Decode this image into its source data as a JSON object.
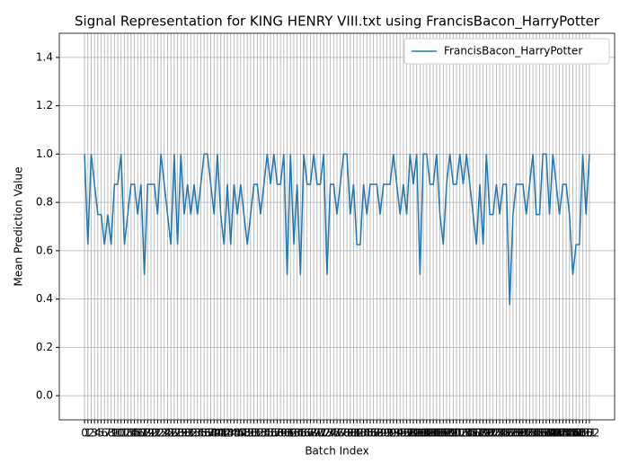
{
  "chart_data": {
    "type": "line",
    "title": "Signal Representation for KING HENRY VIII.txt using FrancisBacon_HarryPotter",
    "x_label": "Batch Index",
    "y_label": "Mean Prediction Value",
    "x": [
      0,
      1,
      2,
      3,
      4,
      5,
      6,
      7,
      8,
      9,
      10,
      11,
      12,
      13,
      14,
      15,
      16,
      17,
      18,
      19,
      20,
      21,
      22,
      23,
      24,
      25,
      26,
      27,
      28,
      29,
      30,
      31,
      32,
      33,
      34,
      35,
      36,
      37,
      38,
      39,
      40,
      41,
      42,
      43,
      44,
      45,
      46,
      47,
      48,
      49,
      50,
      51,
      52,
      53,
      54,
      55,
      56,
      57,
      58,
      59,
      60,
      61,
      62,
      63,
      64,
      65,
      66,
      67,
      68,
      69,
      70,
      71,
      72,
      73,
      74,
      75,
      76,
      77,
      78,
      79,
      80,
      81,
      82,
      83,
      84,
      85,
      86,
      87,
      88,
      89,
      90,
      91,
      92,
      93,
      94,
      95,
      96,
      97,
      98,
      99,
      100,
      101,
      102,
      103,
      104,
      105,
      106,
      107,
      108,
      109,
      110,
      111,
      112,
      113,
      114,
      115,
      116,
      117,
      118,
      119,
      120,
      121,
      122,
      123,
      124,
      125,
      126,
      127,
      128,
      129,
      130,
      131,
      132,
      133,
      134,
      135,
      136,
      137,
      138,
      139,
      140,
      141,
      142,
      143,
      144,
      145,
      146,
      147,
      148,
      149,
      150,
      151,
      152
    ],
    "series": [
      {
        "name": "FrancisBacon_HarryPotter",
        "color": "#1f77b4",
        "values": [
          1,
          0.625,
          1,
          0.875,
          0.75,
          0.75,
          0.625,
          0.75,
          0.625,
          0.875,
          0.875,
          1,
          0.625,
          0.75,
          0.875,
          0.875,
          0.75,
          0.875,
          0.5,
          0.875,
          0.875,
          0.875,
          0.75,
          1,
          0.875,
          0.75,
          0.625,
          1,
          0.625,
          1,
          0.75,
          0.875,
          0.75,
          0.875,
          0.75,
          0.875,
          1,
          1,
          0.875,
          0.75,
          1,
          0.75,
          0.625,
          0.875,
          0.625,
          0.875,
          0.75,
          0.875,
          0.75,
          0.625,
          0.75,
          0.875,
          0.875,
          0.75,
          0.875,
          1,
          0.875,
          1,
          0.875,
          0.875,
          1,
          0.5,
          1,
          0.625,
          0.875,
          0.5,
          1,
          0.875,
          0.875,
          1,
          0.875,
          0.875,
          1,
          0.5,
          0.875,
          0.875,
          0.75,
          0.875,
          1,
          1,
          0.75,
          0.875,
          0.625,
          0.625,
          0.875,
          0.75,
          0.875,
          0.875,
          0.875,
          0.75,
          0.875,
          0.875,
          0.875,
          1,
          0.875,
          0.75,
          0.875,
          0.75,
          1,
          0.875,
          1,
          0.5,
          1,
          1,
          0.875,
          0.875,
          1,
          0.75,
          0.625,
          0.875,
          1,
          0.875,
          0.875,
          1,
          0.875,
          1,
          0.875,
          0.75,
          0.625,
          0.875,
          0.625,
          1,
          0.75,
          0.75,
          0.875,
          0.75,
          0.875,
          0.875,
          0.375,
          0.75,
          0.875,
          0.875,
          0.875,
          0.75,
          0.875,
          1,
          0.75,
          0.75,
          1,
          1,
          0.75,
          1,
          0.875,
          0.75,
          0.875,
          0.875,
          0.75,
          0.5,
          0.625,
          0.625,
          1,
          0.75,
          1
        ]
      }
    ],
    "xlim": [
      -7.6,
      159.6
    ],
    "xticks": [
      0,
      1,
      2,
      3,
      4,
      5,
      6,
      7,
      8,
      9,
      10,
      11,
      12,
      13,
      14,
      15,
      16,
      17,
      18,
      19,
      20,
      21,
      22,
      23,
      24,
      25,
      26,
      27,
      28,
      29,
      30,
      31,
      32,
      33,
      34,
      35,
      36,
      37,
      38,
      39,
      40,
      41,
      42,
      43,
      44,
      45,
      46,
      47,
      48,
      49,
      50,
      51,
      52,
      53,
      54,
      55,
      56,
      57,
      58,
      59,
      60,
      61,
      62,
      63,
      64,
      65,
      66,
      67,
      68,
      69,
      70,
      71,
      72,
      73,
      74,
      75,
      76,
      77,
      78,
      79,
      80,
      81,
      82,
      83,
      84,
      85,
      86,
      87,
      88,
      89,
      90,
      91,
      92,
      93,
      94,
      95,
      96,
      97,
      98,
      99,
      100,
      101,
      102,
      103,
      104,
      105,
      106,
      107,
      108,
      109,
      110,
      111,
      112,
      113,
      114,
      115,
      116,
      117,
      118,
      119,
      120,
      121,
      122,
      123,
      124,
      125,
      126,
      127,
      128,
      129,
      130,
      131,
      132,
      133,
      134,
      135,
      136,
      137,
      138,
      139,
      140,
      141,
      142,
      143,
      144,
      145,
      146,
      147,
      148,
      149,
      150,
      151,
      152
    ],
    "ylim": [
      -0.1,
      1.5
    ],
    "yticks": [
      {
        "value": 0,
        "label": "0.0"
      },
      0.2,
      0.4,
      0.6,
      0.8,
      {
        "value": 1,
        "label": "1.0"
      },
      1.2,
      1.4
    ],
    "grid": true,
    "legend": "upper right"
  }
}
